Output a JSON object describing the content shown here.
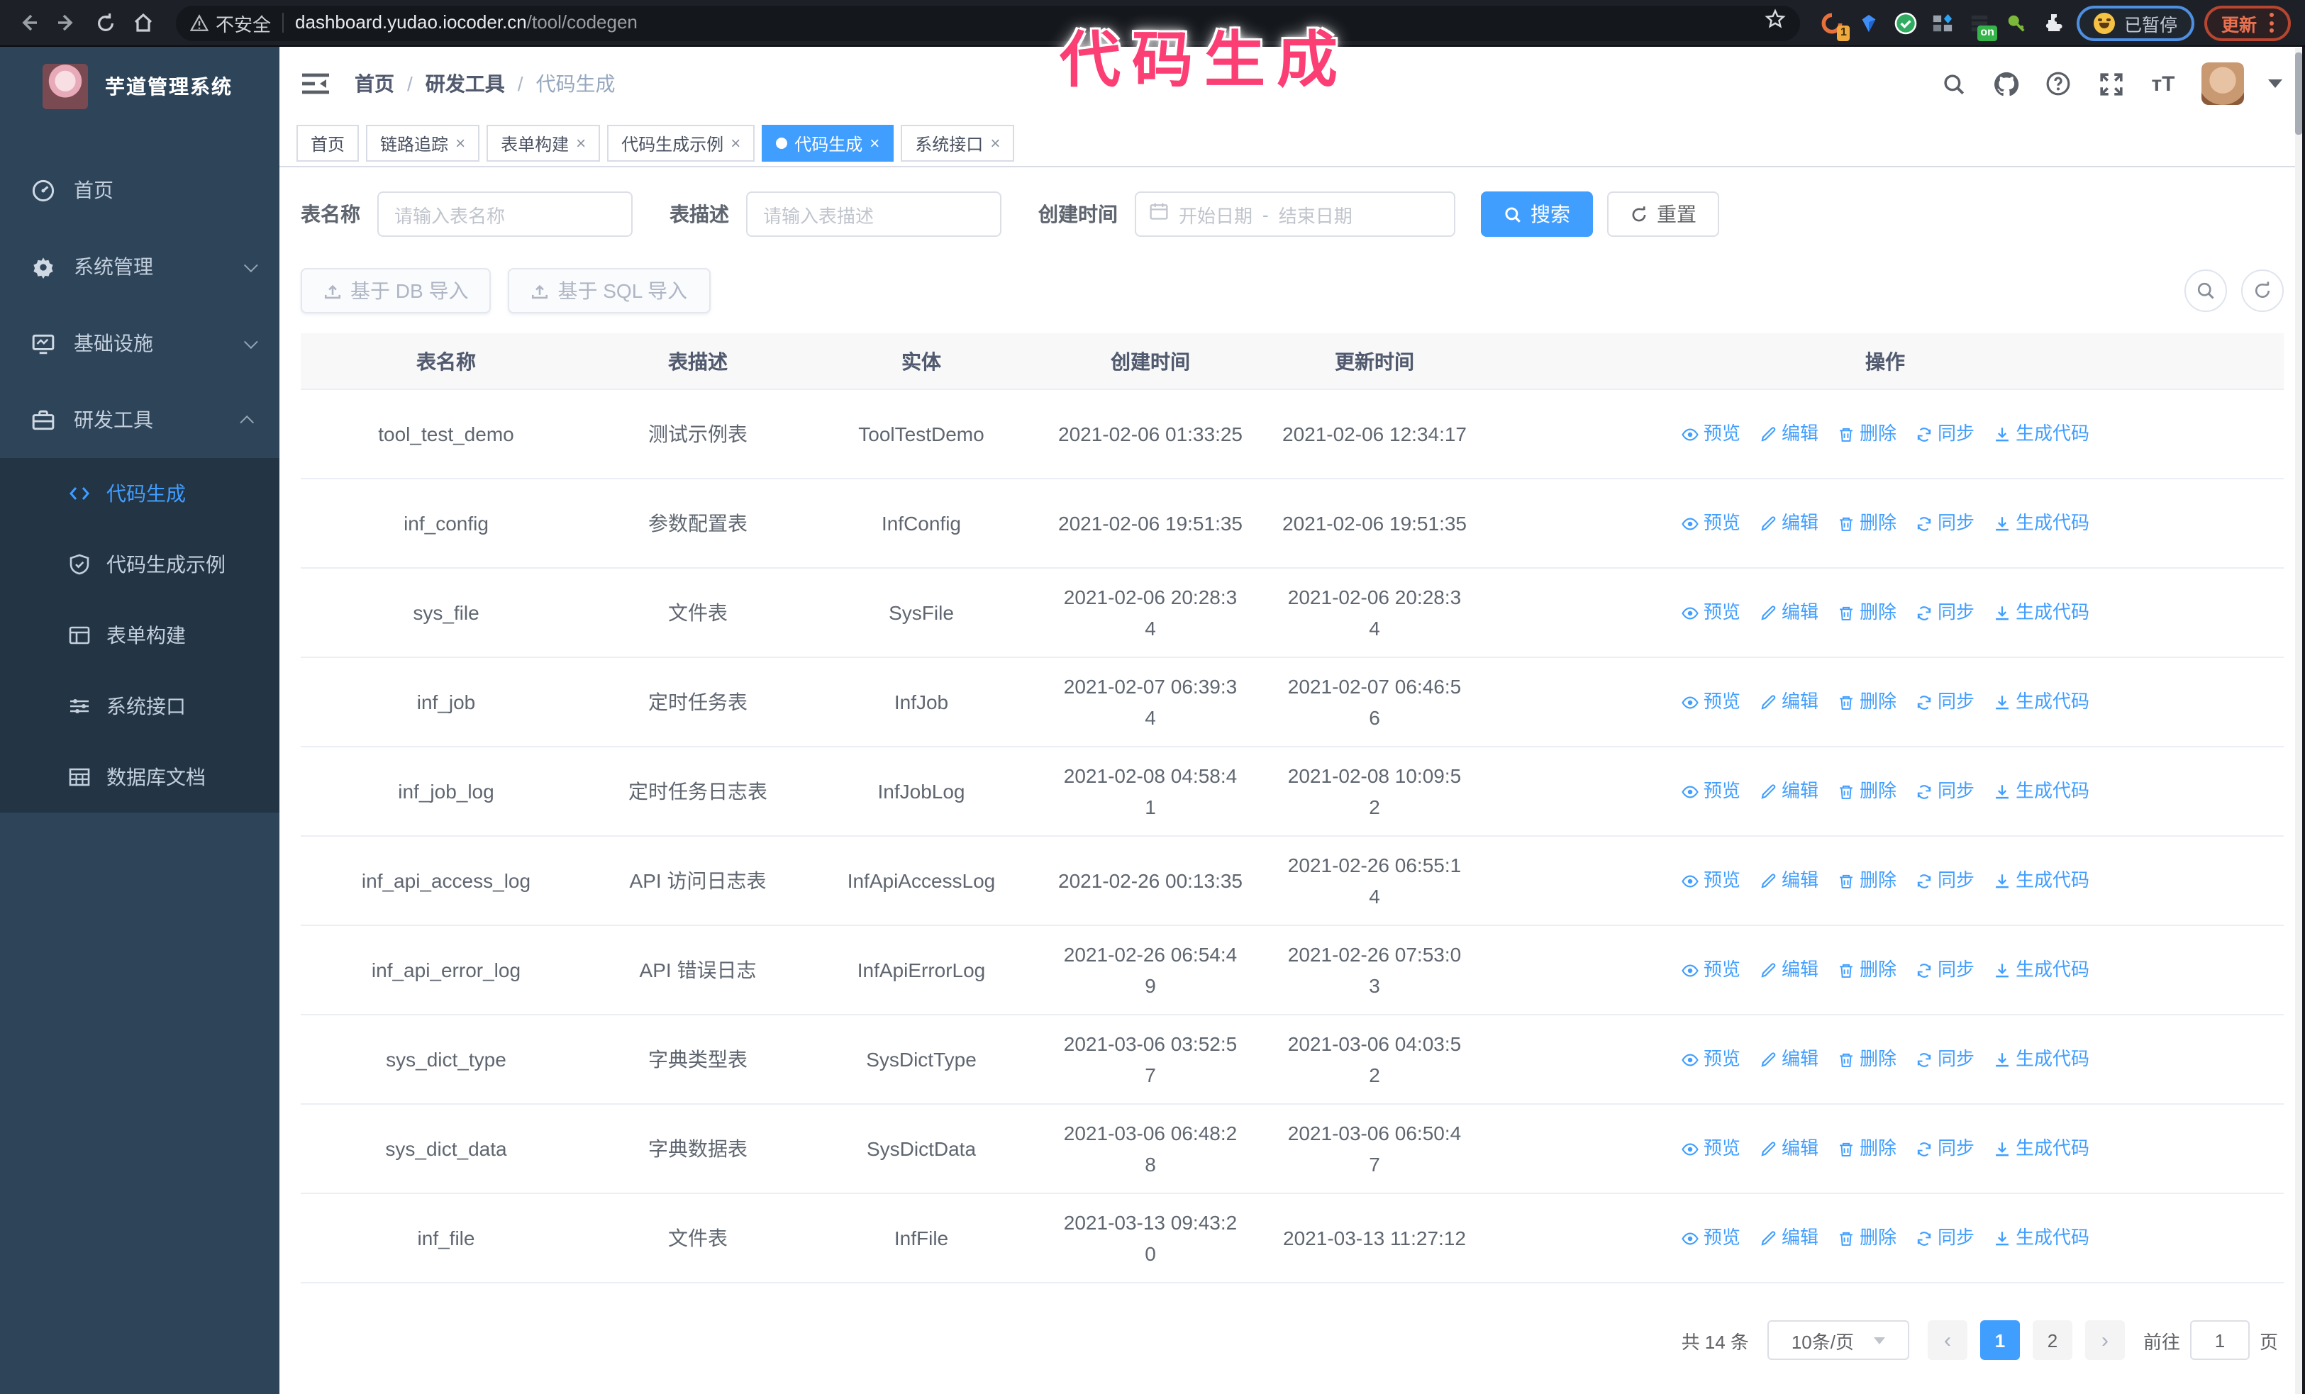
{
  "browser": {
    "security_label": "不安全",
    "url_host": "dashboard.yudao.iocoder.cn",
    "url_path": "/tool/codegen",
    "ext_badge_count": "1",
    "ext_badge_on": "on",
    "paused_label": "已暂停",
    "update_label": "更新"
  },
  "overlay": {
    "text": "代码生成"
  },
  "sidebar": {
    "title": "芋道管理系统",
    "items": [
      {
        "label": "首页"
      },
      {
        "label": "系统管理"
      },
      {
        "label": "基础设施"
      },
      {
        "label": "研发工具"
      }
    ],
    "submenu": [
      {
        "label": "代码生成"
      },
      {
        "label": "代码生成示例"
      },
      {
        "label": "表单构建"
      },
      {
        "label": "系统接口"
      },
      {
        "label": "数据库文档"
      }
    ]
  },
  "header": {
    "breadcrumb": [
      "首页",
      "研发工具",
      "代码生成"
    ]
  },
  "tags": [
    {
      "label": "首页"
    },
    {
      "label": "链路追踪"
    },
    {
      "label": "表单构建"
    },
    {
      "label": "代码生成示例"
    },
    {
      "label": "代码生成"
    },
    {
      "label": "系统接口"
    }
  ],
  "search": {
    "name_label": "表名称",
    "name_placeholder": "请输入表名称",
    "desc_label": "表描述",
    "desc_placeholder": "请输入表描述",
    "time_label": "创建时间",
    "start_placeholder": "开始日期",
    "range_separator": "-",
    "end_placeholder": "结束日期",
    "search_label": "搜索",
    "reset_label": "重置"
  },
  "toolbar": {
    "import_db_label": "基于 DB 导入",
    "import_sql_label": "基于 SQL 导入"
  },
  "table": {
    "columns": [
      "表名称",
      "表描述",
      "实体",
      "创建时间",
      "更新时间",
      "操作"
    ],
    "actions": [
      {
        "icon": "eye",
        "label": "预览"
      },
      {
        "icon": "edit",
        "label": "编辑"
      },
      {
        "icon": "trash",
        "label": "删除"
      },
      {
        "icon": "sync",
        "label": "同步"
      },
      {
        "icon": "download",
        "label": "生成代码"
      }
    ],
    "rows": [
      {
        "name": "tool_test_demo",
        "description": "测试示例表",
        "entity": "ToolTestDemo",
        "created": "2021-02-06 01:33:25",
        "updated": "2021-02-06 12:34:17"
      },
      {
        "name": "inf_config",
        "description": "参数配置表",
        "entity": "InfConfig",
        "created": "2021-02-06 19:51:35",
        "updated": "2021-02-06 19:51:35"
      },
      {
        "name": "sys_file",
        "description": "文件表",
        "entity": "SysFile",
        "created": "2021-02-06 20:28:3\n4",
        "updated": "2021-02-06 20:28:3\n4"
      },
      {
        "name": "inf_job",
        "description": "定时任务表",
        "entity": "InfJob",
        "created": "2021-02-07 06:39:3\n4",
        "updated": "2021-02-07 06:46:5\n6"
      },
      {
        "name": "inf_job_log",
        "description": "定时任务日志表",
        "entity": "InfJobLog",
        "created": "2021-02-08 04:58:4\n1",
        "updated": "2021-02-08 10:09:5\n2"
      },
      {
        "name": "inf_api_access_log",
        "description": "API 访问日志表",
        "entity": "InfApiAccessLog",
        "created": "2021-02-26 00:13:35",
        "updated": "2021-02-26 06:55:1\n4"
      },
      {
        "name": "inf_api_error_log",
        "description": "API 错误日志",
        "entity": "InfApiErrorLog",
        "created": "2021-02-26 06:54:4\n9",
        "updated": "2021-02-26 07:53:0\n3"
      },
      {
        "name": "sys_dict_type",
        "description": "字典类型表",
        "entity": "SysDictType",
        "created": "2021-03-06 03:52:5\n7",
        "updated": "2021-03-06 04:03:5\n2"
      },
      {
        "name": "sys_dict_data",
        "description": "字典数据表",
        "entity": "SysDictData",
        "created": "2021-03-06 06:48:2\n8",
        "updated": "2021-03-06 06:50:4\n7"
      },
      {
        "name": "inf_file",
        "description": "文件表",
        "entity": "InfFile",
        "created": "2021-03-13 09:43:2\n0",
        "updated": "2021-03-13 11:27:12"
      }
    ]
  },
  "pagination": {
    "total": "共 14 条",
    "page_size": "10条/页",
    "prev": "‹",
    "pages": [
      "1",
      "2"
    ],
    "next": "›",
    "goto_label": "前往",
    "goto_value": "1",
    "goto_unit": "页"
  },
  "colors": {
    "accent": "#409eff",
    "overlay_pink": "#fb3e74",
    "sidebar_bg": "#2e4459",
    "submenu_bg": "#233444"
  }
}
